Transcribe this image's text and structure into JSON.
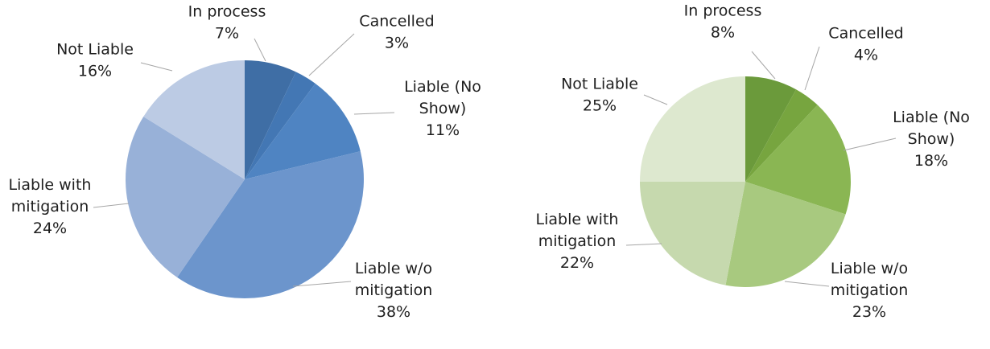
{
  "chart_data": [
    {
      "type": "pie",
      "categories": [
        "In process",
        "Cancelled",
        "Liable (No Show)",
        "Liable w/o mitigation",
        "Liable with mitigation",
        "Not Liable"
      ],
      "values": [
        7,
        3,
        11,
        38,
        24,
        16
      ],
      "value_suffix": "%",
      "start_angle": "12 o'clock, clockwise",
      "colors": [
        "#3f6ea5",
        "#4377b4",
        "#4f84c2",
        "#6c95cc",
        "#98b1d8",
        "#bccbe4"
      ],
      "labels": [
        [
          "In process"
        ],
        [
          "Cancelled"
        ],
        [
          "Liable (No",
          "Show)"
        ],
        [
          "Liable w/o",
          "mitigation"
        ],
        [
          "Liable with",
          "mitigation"
        ],
        [
          "Not Liable"
        ]
      ],
      "title": "",
      "legend": "none"
    },
    {
      "type": "pie",
      "categories": [
        "In process",
        "Cancelled",
        "Liable (No Show)",
        "Liable w/o mitigation",
        "Liable with mitigation",
        "Not Liable"
      ],
      "values": [
        8,
        4,
        18,
        23,
        22,
        25
      ],
      "value_suffix": "%",
      "start_angle": "12 o'clock, clockwise",
      "colors": [
        "#6b9a3b",
        "#77a53f",
        "#8ab653",
        "#a8c97f",
        "#c6d9ae",
        "#dde8cf"
      ],
      "labels": [
        [
          "In process"
        ],
        [
          "Cancelled"
        ],
        [
          "Liable (No",
          "Show)"
        ],
        [
          "Liable w/o",
          "mitigation"
        ],
        [
          "Liable with",
          "mitigation"
        ],
        [
          "Not Liable"
        ]
      ],
      "title": "",
      "legend": "none"
    }
  ]
}
